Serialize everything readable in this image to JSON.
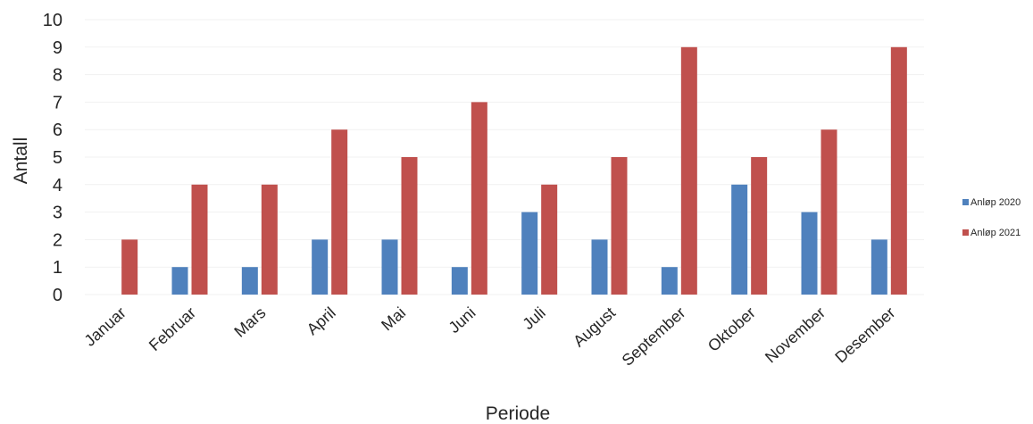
{
  "chart_data": {
    "type": "bar",
    "title": "",
    "xlabel": "Periode",
    "ylabel": "Antall",
    "ylim": [
      0,
      10
    ],
    "yticks": [
      0,
      1,
      2,
      3,
      4,
      5,
      6,
      7,
      8,
      9,
      10
    ],
    "grid": true,
    "legend_position": "right",
    "categories": [
      "Januar",
      "Februar",
      "Mars",
      "April",
      "Mai",
      "Juni",
      "Juli",
      "August",
      "September",
      "Oktober",
      "November",
      "Desember"
    ],
    "series": [
      {
        "name": "Anløp 2020",
        "color": "#4f81bd",
        "values": [
          0,
          1,
          1,
          2,
          2,
          1,
          3,
          2,
          1,
          4,
          3,
          2
        ]
      },
      {
        "name": "Anløp 2021",
        "color": "#c0504d",
        "values": [
          2,
          4,
          4,
          6,
          5,
          7,
          4,
          5,
          9,
          5,
          6,
          9
        ]
      }
    ]
  }
}
